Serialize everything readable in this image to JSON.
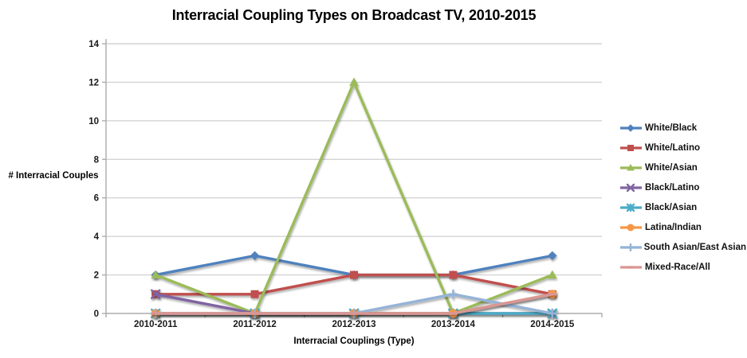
{
  "chart_data": {
    "type": "line",
    "title": "Interracial Coupling Types on Broadcast TV, 2010-2015",
    "xlabel": "Interracial Couplings (Type)",
    "ylabel": "# Interracial Couples",
    "categories": [
      "2010-2011",
      "2011-2012",
      "2012-2013",
      "2013-2014",
      "2014-2015"
    ],
    "ylim": [
      0,
      14
    ],
    "ytick_step": 2,
    "grid": true,
    "legend_position": "right",
    "series": [
      {
        "name": "White/Black",
        "color": "#4F81BD",
        "marker": "diamond",
        "values": [
          2,
          3,
          2,
          2,
          3
        ]
      },
      {
        "name": "White/Latino",
        "color": "#C0504D",
        "marker": "square",
        "values": [
          1,
          1,
          2,
          2,
          1
        ]
      },
      {
        "name": "White/Asian",
        "color": "#9BBB59",
        "marker": "triangle",
        "values": [
          2,
          0,
          12,
          0,
          2
        ]
      },
      {
        "name": "Black/Latino",
        "color": "#8064A2",
        "marker": "x",
        "values": [
          1,
          0,
          0,
          0,
          0
        ]
      },
      {
        "name": "Black/Asian",
        "color": "#4BACC6",
        "marker": "asterisk",
        "values": [
          0,
          0,
          0,
          0,
          0
        ]
      },
      {
        "name": "Latina/Indian",
        "color": "#F79646",
        "marker": "circle",
        "values": [
          0,
          0,
          0,
          0,
          1
        ]
      },
      {
        "name": "South Asian/East Asian",
        "color": "#95B3D7",
        "marker": "plus",
        "values": [
          0,
          0,
          0,
          1,
          0
        ]
      },
      {
        "name": "Mixed-Race/All",
        "color": "#D99694",
        "marker": "dash",
        "values": [
          0,
          0,
          0,
          0,
          1
        ]
      }
    ],
    "colors": {
      "gridline": "#D4D4D4",
      "axis_line": "#ACACAC",
      "background": "#FFFFFF"
    }
  }
}
